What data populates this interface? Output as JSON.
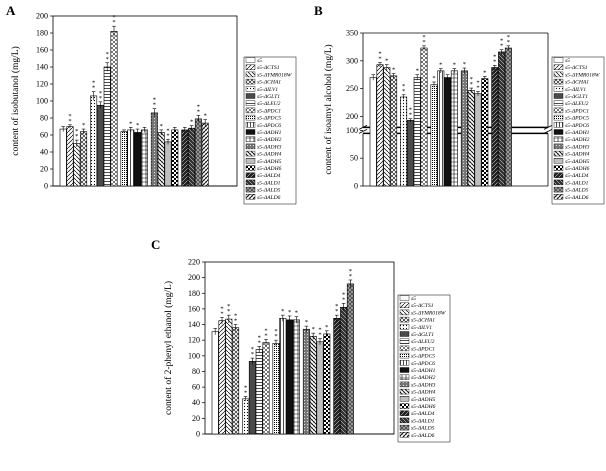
{
  "figure": {
    "legend_labels": [
      "s5",
      "s5-ΔCTS1",
      "s5-ΔYMR018W",
      "s5-ΔCHA1",
      "s5-ΔILV1",
      "s5-ΔGLT1",
      "s5-ΔLEU2",
      "s5-ΔPDC1",
      "s5-ΔPDC5",
      "s5-ΔPDC6",
      "s5-ΔADH1",
      "s5-ΔADH2",
      "s5-ΔADH3",
      "s5-ΔADH4",
      "s5-ΔADH5",
      "s5-ΔADH6",
      "s5-ΔALD4",
      "s5-ΔALD1",
      "s5-ΔALD5",
      "s5-ΔALD6"
    ],
    "colors": {
      "ink": "#000000",
      "dark_fill": "#3a3a3a",
      "mid_fill": "#707070",
      "black_fill": "#111111"
    }
  },
  "chart_data": [
    {
      "type": "bar",
      "panel": "A",
      "title": "",
      "xlabel": "",
      "ylabel": "content of isobutanol (mg/L)",
      "ylim": [
        0,
        200
      ],
      "yticks": [
        "0",
        "20",
        "40",
        "60",
        "80",
        "100",
        "120",
        "140",
        "160",
        "180",
        "200"
      ],
      "groups": [
        {
          "values": [
            67,
            70,
            50,
            64
          ],
          "errors": [
            3,
            2,
            4,
            3
          ],
          "stars": [
            "",
            "**",
            "**",
            "*"
          ]
        },
        {
          "values": [
            106,
            95,
            140,
            182
          ],
          "errors": [
            5,
            4,
            5,
            6
          ],
          "stars": [
            "**",
            "**",
            "**",
            "**"
          ]
        },
        {
          "values": [
            64,
            66,
            63,
            66
          ],
          "errors": [
            2,
            3,
            4,
            3
          ],
          "stars": [
            "",
            "*",
            "*",
            ""
          ]
        },
        {
          "values": [
            86,
            63,
            52,
            66
          ],
          "errors": [
            5,
            3,
            3,
            3
          ],
          "stars": [
            "**",
            "*",
            "**",
            ""
          ]
        },
        {
          "values": [
            66,
            68,
            79,
            74
          ],
          "errors": [
            3,
            3,
            4,
            4
          ],
          "stars": [
            "",
            "*",
            "**",
            "*"
          ]
        }
      ]
    },
    {
      "type": "bar",
      "panel": "B",
      "title": "",
      "xlabel": "",
      "ylabel": "content of isoamyl alcohol (mg/L)",
      "ylim": [
        0,
        350
      ],
      "axis_break": [
        100,
        175
      ],
      "yticks_lower": [
        "0",
        "50",
        "100"
      ],
      "yticks_upper": [
        "200",
        "250",
        "300",
        "350"
      ],
      "groups": [
        {
          "values": [
            270,
            293,
            288,
            273
          ],
          "errors": [
            5,
            4,
            5,
            4
          ],
          "stars": [
            "",
            "**",
            "*",
            "*"
          ]
        },
        {
          "values": [
            235,
            193,
            270,
            323
          ],
          "errors": [
            4,
            3,
            5,
            4
          ],
          "stars": [
            "**",
            "**",
            "*",
            "**"
          ]
        },
        {
          "values": [
            257,
            282,
            270,
            282
          ],
          "errors": [
            5,
            4,
            5,
            4
          ],
          "stars": [
            "*",
            "*",
            "",
            "*"
          ]
        },
        {
          "values": [
            282,
            247,
            241,
            268
          ],
          "errors": [
            5,
            4,
            4,
            4
          ],
          "stars": [
            "*",
            "**",
            "**",
            "*"
          ]
        },
        {
          "values": [
            288,
            316,
            323
          ],
          "errors": [
            4,
            4,
            4
          ],
          "stars": [
            "**",
            "**",
            "**"
          ]
        }
      ]
    },
    {
      "type": "bar",
      "panel": "C",
      "title": "",
      "xlabel": "",
      "ylabel": "content of 2-phenyl ethanol (mg/L)",
      "ylim": [
        0,
        220
      ],
      "yticks": [
        "0",
        "20",
        "40",
        "60",
        "80",
        "100",
        "120",
        "140",
        "160",
        "180",
        "200",
        "220"
      ],
      "groups": [
        {
          "values": [
            131,
            145,
            147,
            136
          ],
          "errors": [
            4,
            4,
            5,
            4
          ],
          "stars": [
            "",
            "**",
            "**",
            "**"
          ]
        },
        {
          "values": [
            45,
            93,
            108,
            117
          ],
          "errors": [
            3,
            4,
            4,
            4
          ],
          "stars": [
            "**",
            "**",
            "**",
            "**"
          ]
        },
        {
          "values": [
            116,
            148,
            146,
            146
          ],
          "errors": [
            4,
            4,
            5,
            4
          ],
          "stars": [
            "**",
            "*",
            "*",
            "*"
          ]
        },
        {
          "values": [
            134,
            125,
            118,
            128
          ],
          "errors": [
            4,
            4,
            4,
            4
          ],
          "stars": [
            "*",
            "*",
            "**",
            "*"
          ]
        },
        {
          "values": [
            148,
            162,
            192
          ],
          "errors": [
            4,
            5,
            5
          ],
          "stars": [
            "**",
            "**",
            "**"
          ]
        }
      ]
    }
  ]
}
